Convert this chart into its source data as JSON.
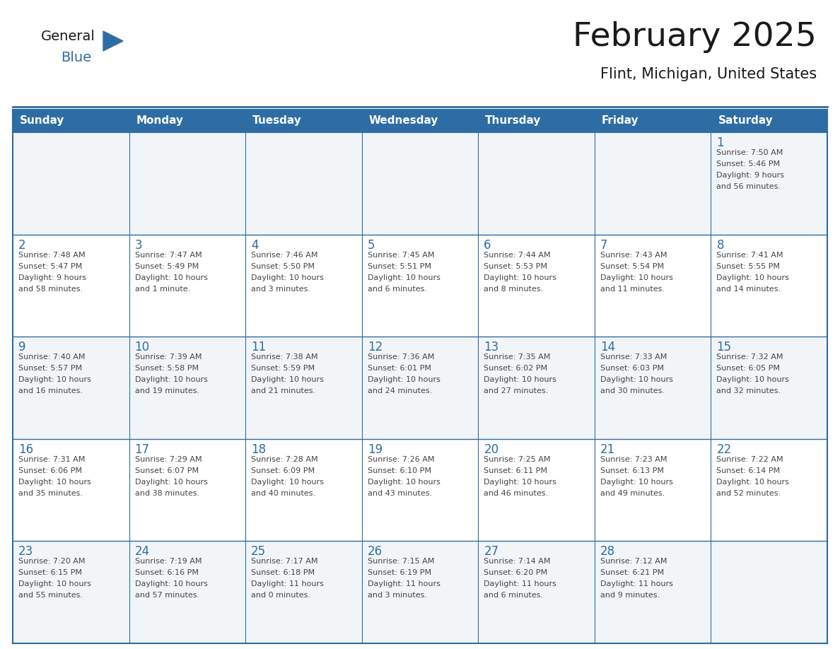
{
  "title": "February 2025",
  "subtitle": "Flint, Michigan, United States",
  "header_bg_color": "#2E6DA4",
  "header_text_color": "#FFFFFF",
  "cell_bg_color_odd": "#F0F4F8",
  "cell_bg_color_even": "#FFFFFF",
  "border_color": "#2E6DA4",
  "day_number_color": "#2E6DA4",
  "cell_text_color": "#444444",
  "days_of_week": [
    "Sunday",
    "Monday",
    "Tuesday",
    "Wednesday",
    "Thursday",
    "Friday",
    "Saturday"
  ],
  "weeks": [
    [
      {
        "day": null,
        "info": ""
      },
      {
        "day": null,
        "info": ""
      },
      {
        "day": null,
        "info": ""
      },
      {
        "day": null,
        "info": ""
      },
      {
        "day": null,
        "info": ""
      },
      {
        "day": null,
        "info": ""
      },
      {
        "day": 1,
        "info": "Sunrise: 7:50 AM\nSunset: 5:46 PM\nDaylight: 9 hours\nand 56 minutes."
      }
    ],
    [
      {
        "day": 2,
        "info": "Sunrise: 7:48 AM\nSunset: 5:47 PM\nDaylight: 9 hours\nand 58 minutes."
      },
      {
        "day": 3,
        "info": "Sunrise: 7:47 AM\nSunset: 5:49 PM\nDaylight: 10 hours\nand 1 minute."
      },
      {
        "day": 4,
        "info": "Sunrise: 7:46 AM\nSunset: 5:50 PM\nDaylight: 10 hours\nand 3 minutes."
      },
      {
        "day": 5,
        "info": "Sunrise: 7:45 AM\nSunset: 5:51 PM\nDaylight: 10 hours\nand 6 minutes."
      },
      {
        "day": 6,
        "info": "Sunrise: 7:44 AM\nSunset: 5:53 PM\nDaylight: 10 hours\nand 8 minutes."
      },
      {
        "day": 7,
        "info": "Sunrise: 7:43 AM\nSunset: 5:54 PM\nDaylight: 10 hours\nand 11 minutes."
      },
      {
        "day": 8,
        "info": "Sunrise: 7:41 AM\nSunset: 5:55 PM\nDaylight: 10 hours\nand 14 minutes."
      }
    ],
    [
      {
        "day": 9,
        "info": "Sunrise: 7:40 AM\nSunset: 5:57 PM\nDaylight: 10 hours\nand 16 minutes."
      },
      {
        "day": 10,
        "info": "Sunrise: 7:39 AM\nSunset: 5:58 PM\nDaylight: 10 hours\nand 19 minutes."
      },
      {
        "day": 11,
        "info": "Sunrise: 7:38 AM\nSunset: 5:59 PM\nDaylight: 10 hours\nand 21 minutes."
      },
      {
        "day": 12,
        "info": "Sunrise: 7:36 AM\nSunset: 6:01 PM\nDaylight: 10 hours\nand 24 minutes."
      },
      {
        "day": 13,
        "info": "Sunrise: 7:35 AM\nSunset: 6:02 PM\nDaylight: 10 hours\nand 27 minutes."
      },
      {
        "day": 14,
        "info": "Sunrise: 7:33 AM\nSunset: 6:03 PM\nDaylight: 10 hours\nand 30 minutes."
      },
      {
        "day": 15,
        "info": "Sunrise: 7:32 AM\nSunset: 6:05 PM\nDaylight: 10 hours\nand 32 minutes."
      }
    ],
    [
      {
        "day": 16,
        "info": "Sunrise: 7:31 AM\nSunset: 6:06 PM\nDaylight: 10 hours\nand 35 minutes."
      },
      {
        "day": 17,
        "info": "Sunrise: 7:29 AM\nSunset: 6:07 PM\nDaylight: 10 hours\nand 38 minutes."
      },
      {
        "day": 18,
        "info": "Sunrise: 7:28 AM\nSunset: 6:09 PM\nDaylight: 10 hours\nand 40 minutes."
      },
      {
        "day": 19,
        "info": "Sunrise: 7:26 AM\nSunset: 6:10 PM\nDaylight: 10 hours\nand 43 minutes."
      },
      {
        "day": 20,
        "info": "Sunrise: 7:25 AM\nSunset: 6:11 PM\nDaylight: 10 hours\nand 46 minutes."
      },
      {
        "day": 21,
        "info": "Sunrise: 7:23 AM\nSunset: 6:13 PM\nDaylight: 10 hours\nand 49 minutes."
      },
      {
        "day": 22,
        "info": "Sunrise: 7:22 AM\nSunset: 6:14 PM\nDaylight: 10 hours\nand 52 minutes."
      }
    ],
    [
      {
        "day": 23,
        "info": "Sunrise: 7:20 AM\nSunset: 6:15 PM\nDaylight: 10 hours\nand 55 minutes."
      },
      {
        "day": 24,
        "info": "Sunrise: 7:19 AM\nSunset: 6:16 PM\nDaylight: 10 hours\nand 57 minutes."
      },
      {
        "day": 25,
        "info": "Sunrise: 7:17 AM\nSunset: 6:18 PM\nDaylight: 11 hours\nand 0 minutes."
      },
      {
        "day": 26,
        "info": "Sunrise: 7:15 AM\nSunset: 6:19 PM\nDaylight: 11 hours\nand 3 minutes."
      },
      {
        "day": 27,
        "info": "Sunrise: 7:14 AM\nSunset: 6:20 PM\nDaylight: 11 hours\nand 6 minutes."
      },
      {
        "day": 28,
        "info": "Sunrise: 7:12 AM\nSunset: 6:21 PM\nDaylight: 11 hours\nand 9 minutes."
      },
      {
        "day": null,
        "info": ""
      }
    ]
  ],
  "logo_general_color": "#1a1a1a",
  "logo_blue_color": "#2E6DA4",
  "logo_triangle_color": "#2E6DA4"
}
